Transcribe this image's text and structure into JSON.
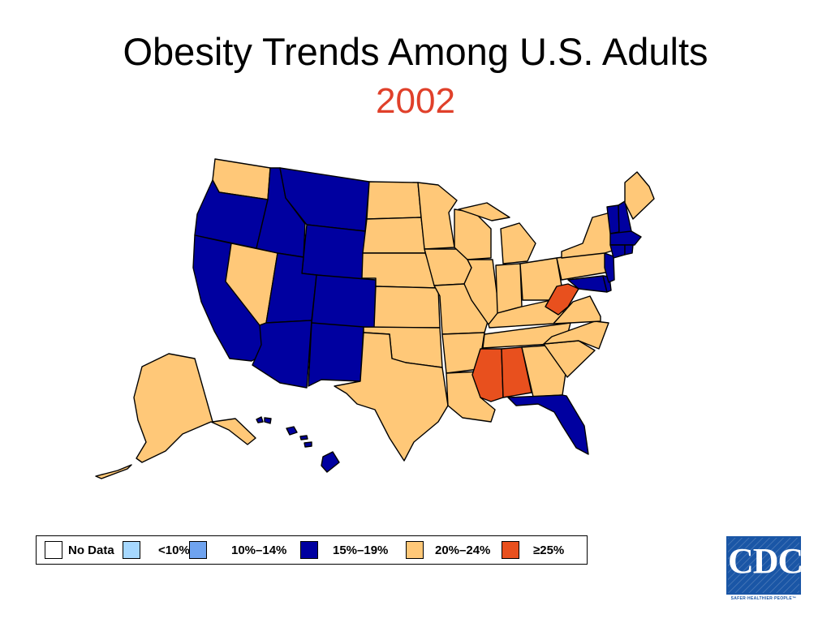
{
  "title": "Obesity Trends Among U.S. Adults",
  "subtitle": "2002",
  "colors": {
    "title": "#000000",
    "subtitle": "#e0402a",
    "no_data": "#ffffff",
    "lt10": "#a6d8ff",
    "10_14": "#6fa3ef",
    "15_19": "#0000a0",
    "20_24": "#ffc878",
    "gte25": "#e8501e",
    "cdc_logo": "#1a56a6"
  },
  "legend": [
    {
      "label": "No Data",
      "color": "#ffffff"
    },
    {
      "label": "<10%",
      "color": "#a6d8ff"
    },
    {
      "label": "10%–14%",
      "color": "#6fa3ef"
    },
    {
      "label": "15%–19%",
      "color": "#0000a0"
    },
    {
      "label": "20%–24%",
      "color": "#ffc878"
    },
    {
      "label": "≥25%",
      "color": "#e8501e"
    }
  ],
  "states": {
    "WA": "20%–24%",
    "OR": "15%–19%",
    "CA": "15%–19%",
    "ID": "15%–19%",
    "NV": "20%–24%",
    "MT": "15%–19%",
    "WY": "15%–19%",
    "UT": "15%–19%",
    "AZ": "15%–19%",
    "CO": "15%–19%",
    "NM": "15%–19%",
    "ND": "20%–24%",
    "SD": "20%–24%",
    "NE": "20%–24%",
    "KS": "20%–24%",
    "OK": "20%–24%",
    "TX": "20%–24%",
    "MN": "20%–24%",
    "IA": "20%–24%",
    "MO": "20%–24%",
    "AR": "20%–24%",
    "LA": "20%–24%",
    "WI": "20%–24%",
    "IL": "20%–24%",
    "MI": "20%–24%",
    "IN": "20%–24%",
    "OH": "20%–24%",
    "KY": "20%–24%",
    "TN": "20%–24%",
    "MS": "≥25%",
    "AL": "≥25%",
    "GA": "20%–24%",
    "FL": "15%–19%",
    "SC": "20%–24%",
    "NC": "20%–24%",
    "VA": "20%–24%",
    "WV": "≥25%",
    "MD": "15%–19%",
    "DE": "15%–19%",
    "NJ": "15%–19%",
    "PA": "20%–24%",
    "NY": "20%–24%",
    "VT": "15%–19%",
    "NH": "15%–19%",
    "ME": "20%–24%",
    "MA": "15%–19%",
    "CT": "15%–19%",
    "RI": "15%–19%",
    "AK": "20%–24%",
    "HI": "15%–19%"
  },
  "logo": {
    "text": "CDC",
    "tagline": "SAFER·HEALTHIER·PEOPLE™"
  }
}
